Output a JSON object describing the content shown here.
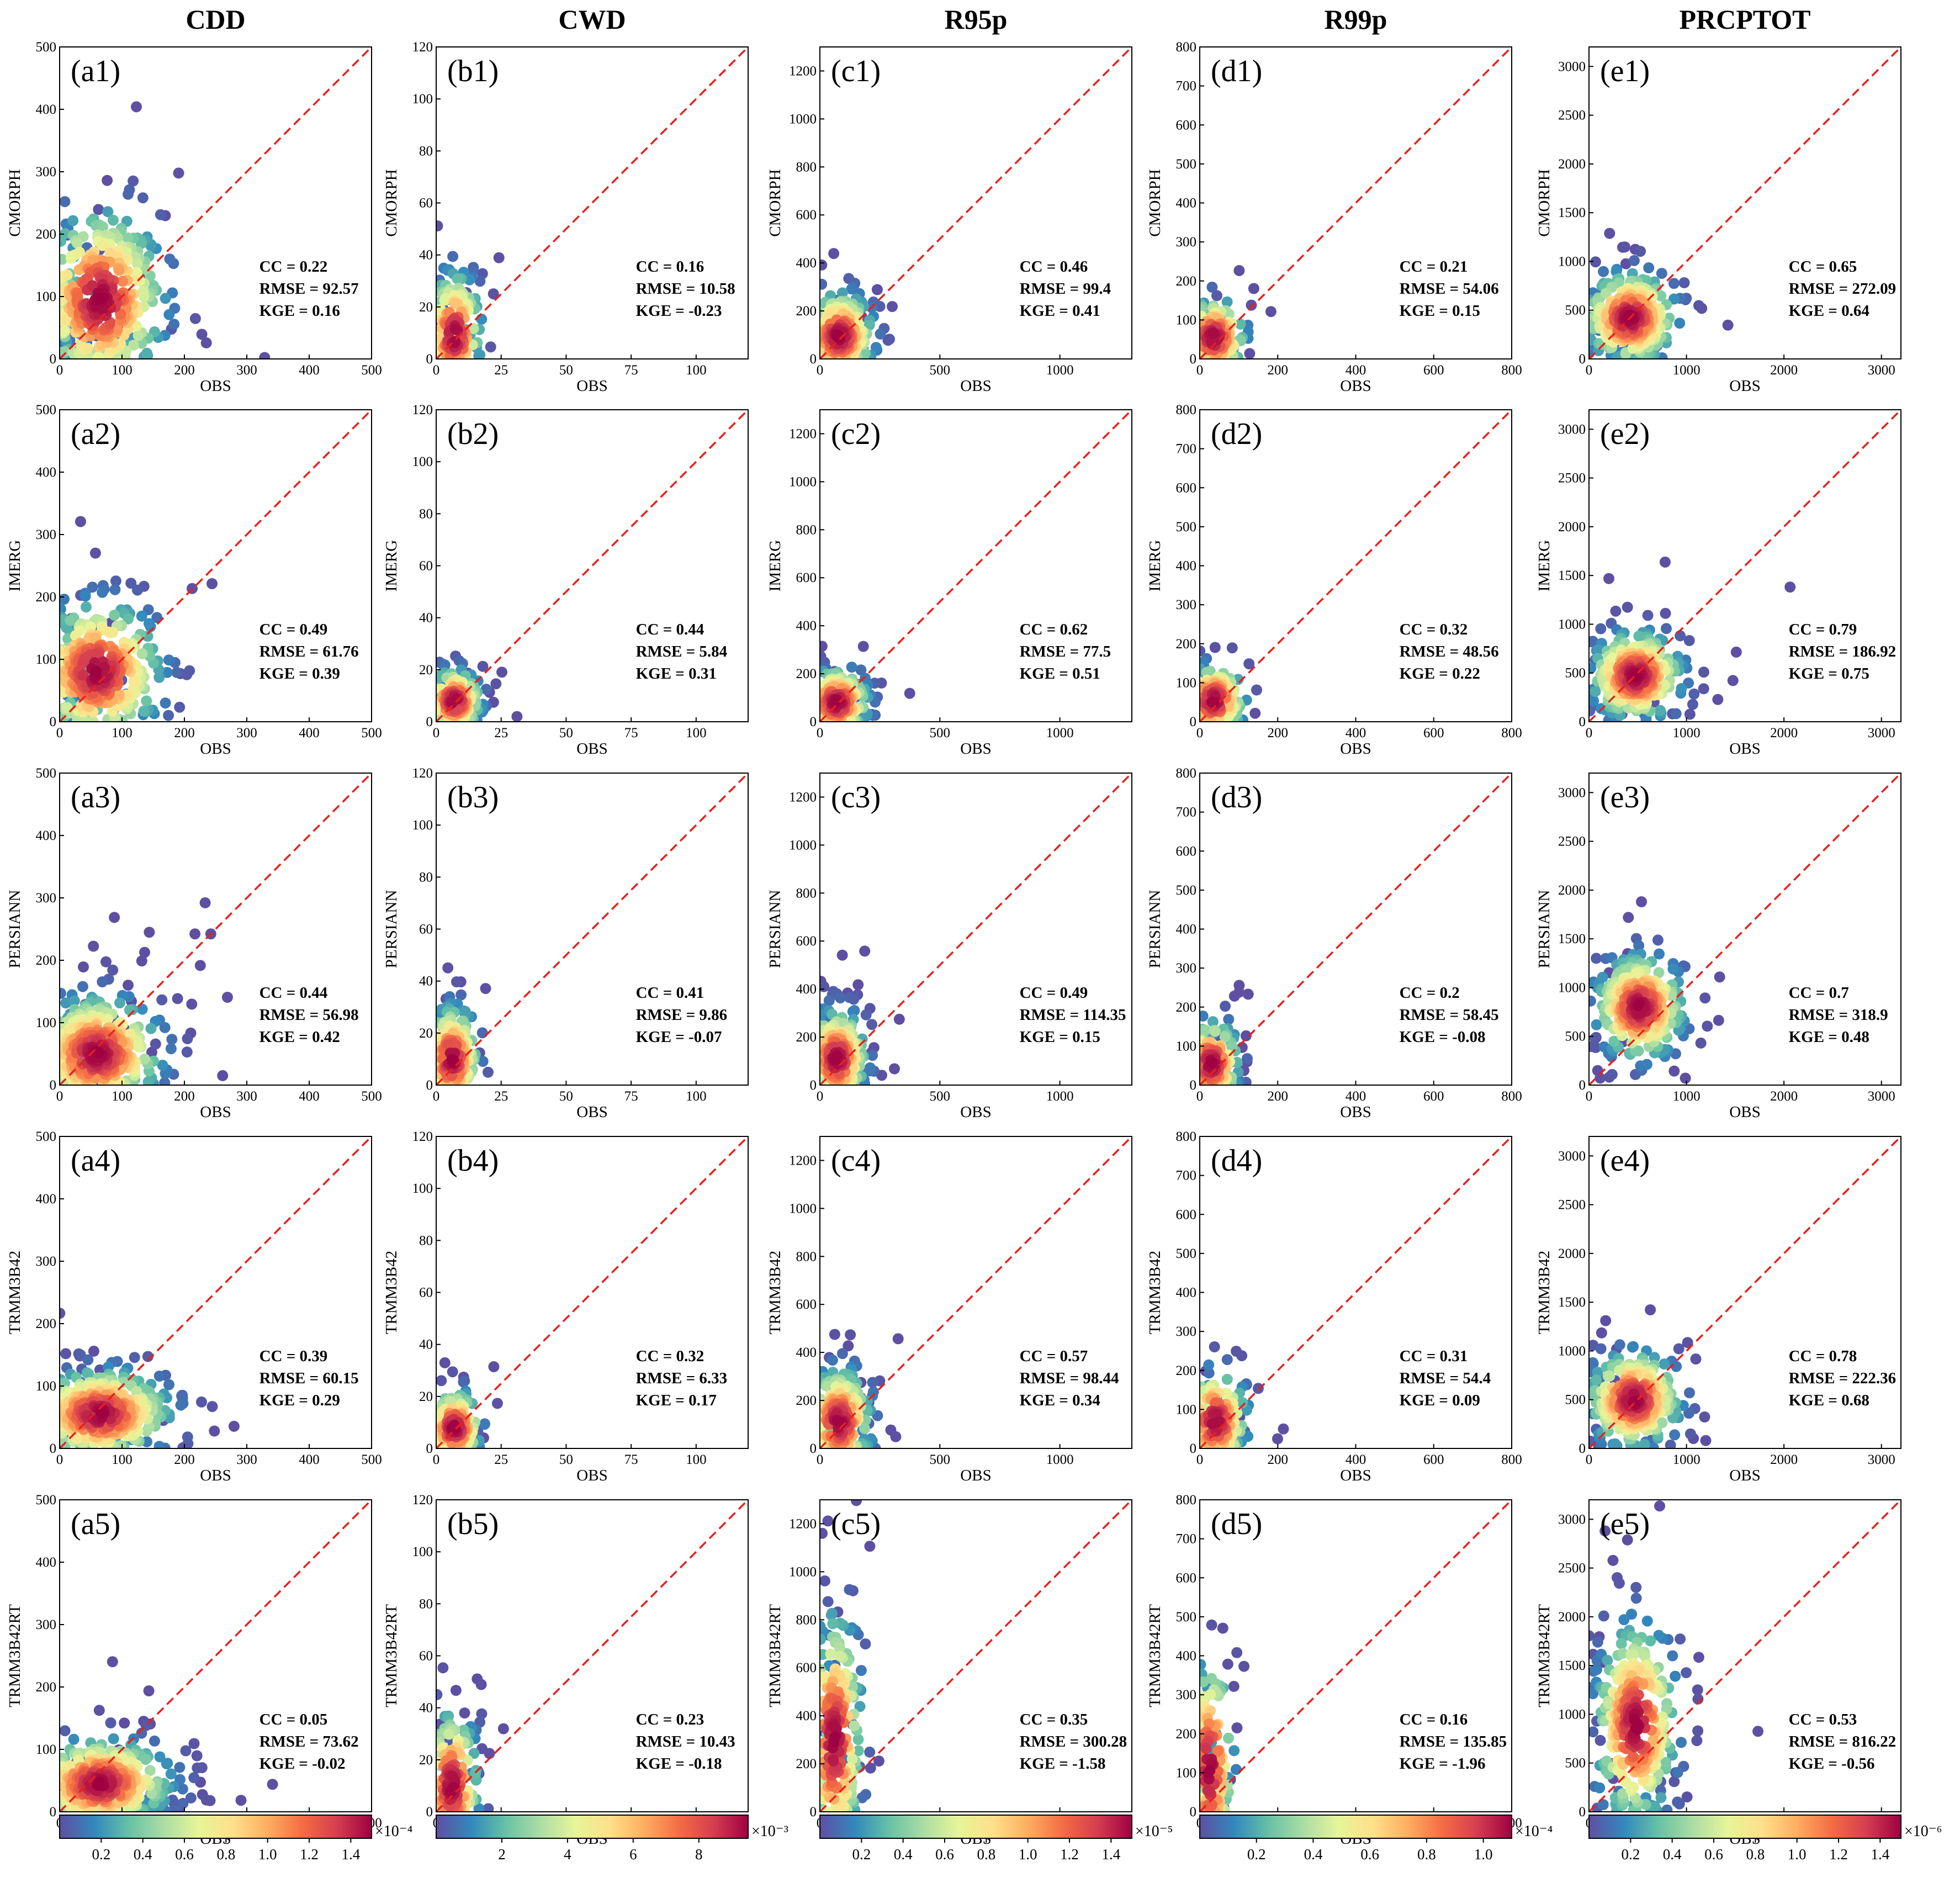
{
  "chart_data": {
    "type": "scatter",
    "description_type": "density-colored scatter grid",
    "x_label": "OBS",
    "columns": [
      {
        "title": "CDD",
        "axis_max": 500,
        "x_ticks": [
          0,
          100,
          200,
          300,
          400,
          500
        ],
        "y_ticks": [
          0,
          100,
          200,
          300,
          400,
          500
        ]
      },
      {
        "title": "CWD",
        "axis_max": 120,
        "x_ticks": [
          0,
          25,
          50,
          75,
          100
        ],
        "y_ticks": [
          0,
          20,
          40,
          60,
          80,
          100,
          120
        ]
      },
      {
        "title": "R95p",
        "axis_max": 1300,
        "x_ticks": [
          0,
          500,
          1000
        ],
        "y_ticks": [
          0,
          200,
          400,
          600,
          800,
          1000,
          1200
        ]
      },
      {
        "title": "R99p",
        "axis_max": 800,
        "x_ticks": [
          0,
          200,
          400,
          600,
          800
        ],
        "y_ticks": [
          0,
          100,
          200,
          300,
          400,
          500,
          600,
          700,
          800
        ]
      },
      {
        "title": "PRCPTOT",
        "axis_max": 3200,
        "x_ticks": [
          0,
          1000,
          2000,
          3000
        ],
        "y_ticks": [
          0,
          500,
          1000,
          1500,
          2000,
          2500,
          3000
        ]
      }
    ],
    "rows": [
      "CMORPH",
      "IMERG",
      "PERSIANN",
      "TRMM3B42",
      "TRMM3B42RT"
    ],
    "panels": [
      [
        {
          "label": "(a1)",
          "cc": "CC = 0.22",
          "rmse": "RMSE = 92.57",
          "kge": "KGE = 0.16"
        },
        {
          "label": "(b1)",
          "cc": "CC = 0.16",
          "rmse": "RMSE = 10.58",
          "kge": "KGE = -0.23"
        },
        {
          "label": "(c1)",
          "cc": "CC = 0.46",
          "rmse": "RMSE = 99.4",
          "kge": "KGE = 0.41"
        },
        {
          "label": "(d1)",
          "cc": "CC = 0.21",
          "rmse": "RMSE = 54.06",
          "kge": "KGE = 0.15"
        },
        {
          "label": "(e1)",
          "cc": "CC = 0.65",
          "rmse": "RMSE = 272.09",
          "kge": "KGE = 0.64"
        }
      ],
      [
        {
          "label": "(a2)",
          "cc": "CC = 0.49",
          "rmse": "RMSE = 61.76",
          "kge": "KGE = 0.39"
        },
        {
          "label": "(b2)",
          "cc": "CC = 0.44",
          "rmse": "RMSE = 5.84",
          "kge": "KGE = 0.31"
        },
        {
          "label": "(c2)",
          "cc": "CC = 0.62",
          "rmse": "RMSE = 77.5",
          "kge": "KGE = 0.51"
        },
        {
          "label": "(d2)",
          "cc": "CC = 0.32",
          "rmse": "RMSE = 48.56",
          "kge": "KGE = 0.22"
        },
        {
          "label": "(e2)",
          "cc": "CC = 0.79",
          "rmse": "RMSE = 186.92",
          "kge": "KGE = 0.75"
        }
      ],
      [
        {
          "label": "(a3)",
          "cc": "CC = 0.44",
          "rmse": "RMSE = 56.98",
          "kge": "KGE = 0.42"
        },
        {
          "label": "(b3)",
          "cc": "CC = 0.41",
          "rmse": "RMSE = 9.86",
          "kge": "KGE = -0.07"
        },
        {
          "label": "(c3)",
          "cc": "CC = 0.49",
          "rmse": "RMSE = 114.35",
          "kge": "KGE = 0.15"
        },
        {
          "label": "(d3)",
          "cc": "CC = 0.2",
          "rmse": "RMSE = 58.45",
          "kge": "KGE = -0.08"
        },
        {
          "label": "(e3)",
          "cc": "CC = 0.7",
          "rmse": "RMSE = 318.9",
          "kge": "KGE = 0.48"
        }
      ],
      [
        {
          "label": "(a4)",
          "cc": "CC = 0.39",
          "rmse": "RMSE = 60.15",
          "kge": "KGE = 0.29"
        },
        {
          "label": "(b4)",
          "cc": "CC = 0.32",
          "rmse": "RMSE = 6.33",
          "kge": "KGE = 0.17"
        },
        {
          "label": "(c4)",
          "cc": "CC = 0.57",
          "rmse": "RMSE = 98.44",
          "kge": "KGE = 0.34"
        },
        {
          "label": "(d4)",
          "cc": "CC = 0.31",
          "rmse": "RMSE = 54.4",
          "kge": "KGE = 0.09"
        },
        {
          "label": "(e4)",
          "cc": "CC = 0.78",
          "rmse": "RMSE = 222.36",
          "kge": "KGE = 0.68"
        }
      ],
      [
        {
          "label": "(a5)",
          "cc": "CC = 0.05",
          "rmse": "RMSE = 73.62",
          "kge": "KGE = -0.02"
        },
        {
          "label": "(b5)",
          "cc": "CC = 0.23",
          "rmse": "RMSE = 10.43",
          "kge": "KGE = -0.18"
        },
        {
          "label": "(c5)",
          "cc": "CC = 0.35",
          "rmse": "RMSE = 300.28",
          "kge": "KGE = -1.58"
        },
        {
          "label": "(d5)",
          "cc": "CC = 0.16",
          "rmse": "RMSE = 135.85",
          "kge": "KGE = -1.96"
        },
        {
          "label": "(e5)",
          "cc": "CC = 0.53",
          "rmse": "RMSE = 816.22",
          "kge": "KGE = -0.56"
        }
      ]
    ],
    "clusters": [
      [
        {
          "cx": 65,
          "cy": 95,
          "sx": 50,
          "sy": 70,
          "n": 380
        },
        {
          "cx": 7,
          "cy": 9,
          "sx": 5,
          "sy": 12,
          "n": 180
        },
        {
          "cx": 80,
          "cy": 95,
          "sx": 70,
          "sy": 90,
          "n": 230
        },
        {
          "cx": 35,
          "cy": 55,
          "sx": 40,
          "sy": 50,
          "n": 160
        },
        {
          "cx": 420,
          "cy": 420,
          "sx": 230,
          "sy": 230,
          "n": 320
        }
      ],
      [
        {
          "cx": 60,
          "cy": 80,
          "sx": 50,
          "sy": 55,
          "n": 380
        },
        {
          "cx": 7,
          "cy": 8,
          "sx": 5,
          "sy": 6,
          "n": 180
        },
        {
          "cx": 70,
          "cy": 80,
          "sx": 65,
          "sy": 70,
          "n": 240
        },
        {
          "cx": 35,
          "cy": 55,
          "sx": 40,
          "sy": 45,
          "n": 160
        },
        {
          "cx": 480,
          "cy": 470,
          "sx": 230,
          "sy": 220,
          "n": 320
        }
      ],
      [
        {
          "cx": 60,
          "cy": 50,
          "sx": 50,
          "sy": 45,
          "n": 380
        },
        {
          "cx": 6,
          "cy": 10,
          "sx": 5,
          "sy": 10,
          "n": 180
        },
        {
          "cx": 70,
          "cy": 110,
          "sx": 60,
          "sy": 100,
          "n": 240
        },
        {
          "cx": 30,
          "cy": 55,
          "sx": 35,
          "sy": 55,
          "n": 160
        },
        {
          "cx": 520,
          "cy": 800,
          "sx": 220,
          "sy": 260,
          "n": 320
        }
      ],
      [
        {
          "cx": 65,
          "cy": 55,
          "sx": 55,
          "sy": 35,
          "n": 380
        },
        {
          "cx": 7,
          "cy": 8,
          "sx": 5,
          "sy": 7,
          "n": 180
        },
        {
          "cx": 80,
          "cy": 110,
          "sx": 65,
          "sy": 110,
          "n": 240
        },
        {
          "cx": 40,
          "cy": 70,
          "sx": 40,
          "sy": 65,
          "n": 160
        },
        {
          "cx": 460,
          "cy": 500,
          "sx": 230,
          "sy": 240,
          "n": 320
        }
      ],
      [
        {
          "cx": 65,
          "cy": 45,
          "sx": 55,
          "sy": 35,
          "n": 380
        },
        {
          "cx": 6,
          "cy": 10,
          "sx": 5,
          "sy": 14,
          "n": 180
        },
        {
          "cx": 60,
          "cy": 300,
          "sx": 55,
          "sy": 260,
          "n": 240
        },
        {
          "cx": 25,
          "cy": 110,
          "sx": 30,
          "sy": 140,
          "n": 160
        },
        {
          "cx": 480,
          "cy": 900,
          "sx": 200,
          "sy": 500,
          "n": 320
        }
      ]
    ],
    "colorbars": [
      {
        "ticks": [
          "0.2",
          "0.4",
          "0.6",
          "0.8",
          "1.0",
          "1.2",
          "1.4"
        ],
        "min": 0,
        "max": 1.5,
        "exponent": "×10⁻⁴"
      },
      {
        "ticks": [
          "2",
          "4",
          "6",
          "8"
        ],
        "min": 0,
        "max": 9.5,
        "exponent": "×10⁻³"
      },
      {
        "ticks": [
          "0.2",
          "0.4",
          "0.6",
          "0.8",
          "1.0",
          "1.2",
          "1.4"
        ],
        "min": 0,
        "max": 1.5,
        "exponent": "×10⁻⁵"
      },
      {
        "ticks": [
          "0.2",
          "0.4",
          "0.6",
          "0.8",
          "1.0"
        ],
        "min": 0,
        "max": 1.1,
        "exponent": "×10⁻⁴"
      },
      {
        "ticks": [
          "0.2",
          "0.4",
          "0.6",
          "0.8",
          "1.0",
          "1.2",
          "1.4"
        ],
        "min": 0,
        "max": 1.5,
        "exponent": "×10⁻⁶"
      }
    ],
    "colormap": [
      "#5e4fa2",
      "#3288bd",
      "#66c2a5",
      "#abdda4",
      "#e6f598",
      "#fee08b",
      "#fdae61",
      "#f46d43",
      "#d53e4f",
      "#9e0142"
    ],
    "identity_line_color": "#e8201c",
    "point_edge_color": "#5e4fa2"
  }
}
